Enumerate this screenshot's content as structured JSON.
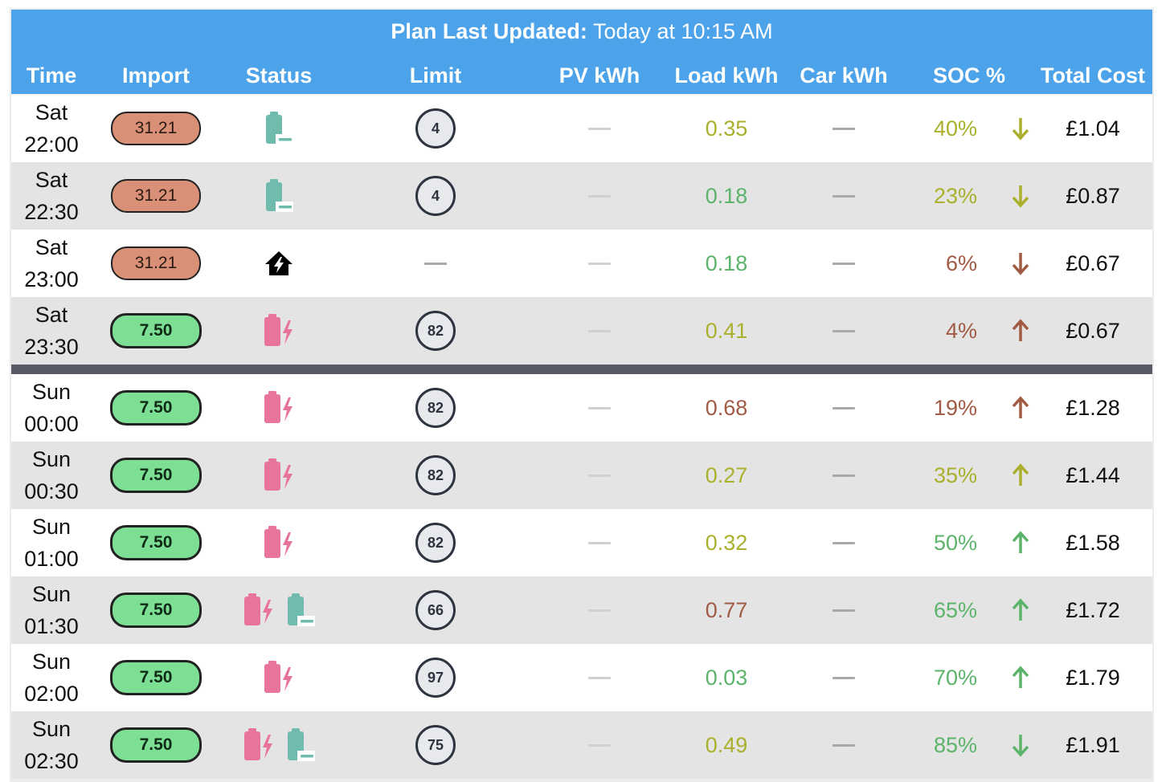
{
  "header": {
    "title_label": "Plan Last Updated:",
    "title_value": "Today at 10:15 AM"
  },
  "columns": [
    "Time",
    "Import",
    "Status",
    "Limit",
    "PV kWh",
    "Load kWh",
    "Car kWh",
    "SOC %",
    "Total Cost"
  ],
  "colors": {
    "header_bg": "#4da3ea",
    "divider": "#575b66",
    "pill_high": "#d99076",
    "pill_low": "#7ddf93",
    "discharge_icon": "#6fbcaf",
    "charge_icon": "#e8739c",
    "load_olive": "#aab02c",
    "load_green": "#5cb36a",
    "load_brown": "#a15a43"
  },
  "rows": [
    {
      "day": "Sat",
      "time": "22:00",
      "import": "31.21",
      "import_level": "high",
      "status": [
        "discharge-icon"
      ],
      "limit": "4",
      "pv": "—",
      "load": "0.35",
      "load_color": "#aab02c",
      "car": "—",
      "soc": "40%",
      "soc_color": "#aab02c",
      "soc_dir": "down",
      "cost": "£1.04"
    },
    {
      "day": "Sat",
      "time": "22:30",
      "import": "31.21",
      "import_level": "high",
      "status": [
        "discharge-icon"
      ],
      "limit": "4",
      "pv": "—",
      "load": "0.18",
      "load_color": "#5cb36a",
      "car": "—",
      "soc": "23%",
      "soc_color": "#aab02c",
      "soc_dir": "down",
      "cost": "£0.87"
    },
    {
      "day": "Sat",
      "time": "23:00",
      "import": "31.21",
      "import_level": "high",
      "status": [
        "house-bolt-icon"
      ],
      "limit": "—",
      "pv": "—",
      "load": "0.18",
      "load_color": "#5cb36a",
      "car": "—",
      "soc": "6%",
      "soc_color": "#a15a43",
      "soc_dir": "down",
      "cost": "£0.67"
    },
    {
      "day": "Sat",
      "time": "23:30",
      "import": "7.50",
      "import_level": "low",
      "status": [
        "charge-icon"
      ],
      "limit": "82",
      "pv": "—",
      "load": "0.41",
      "load_color": "#aab02c",
      "car": "—",
      "soc": "4%",
      "soc_color": "#a15a43",
      "soc_dir": "up",
      "cost": "£0.67"
    },
    {
      "day": "Sun",
      "time": "00:00",
      "import": "7.50",
      "import_level": "low",
      "status": [
        "charge-icon"
      ],
      "limit": "82",
      "pv": "—",
      "load": "0.68",
      "load_color": "#a15a43",
      "car": "—",
      "soc": "19%",
      "soc_color": "#a15a43",
      "soc_dir": "up",
      "cost": "£1.28"
    },
    {
      "day": "Sun",
      "time": "00:30",
      "import": "7.50",
      "import_level": "low",
      "status": [
        "charge-icon"
      ],
      "limit": "82",
      "pv": "—",
      "load": "0.27",
      "load_color": "#aab02c",
      "car": "—",
      "soc": "35%",
      "soc_color": "#aab02c",
      "soc_dir": "up",
      "cost": "£1.44"
    },
    {
      "day": "Sun",
      "time": "01:00",
      "import": "7.50",
      "import_level": "low",
      "status": [
        "charge-icon"
      ],
      "limit": "82",
      "pv": "—",
      "load": "0.32",
      "load_color": "#aab02c",
      "car": "—",
      "soc": "50%",
      "soc_color": "#5cb36a",
      "soc_dir": "up",
      "cost": "£1.58"
    },
    {
      "day": "Sun",
      "time": "01:30",
      "import": "7.50",
      "import_level": "low",
      "status": [
        "charge-icon",
        "discharge-icon"
      ],
      "limit": "66",
      "pv": "—",
      "load": "0.77",
      "load_color": "#a15a43",
      "car": "—",
      "soc": "65%",
      "soc_color": "#5cb36a",
      "soc_dir": "up",
      "cost": "£1.72"
    },
    {
      "day": "Sun",
      "time": "02:00",
      "import": "7.50",
      "import_level": "low",
      "status": [
        "charge-icon"
      ],
      "limit": "97",
      "pv": "—",
      "load": "0.03",
      "load_color": "#5cb36a",
      "car": "—",
      "soc": "70%",
      "soc_color": "#5cb36a",
      "soc_dir": "up",
      "cost": "£1.79"
    },
    {
      "day": "Sun",
      "time": "02:30",
      "import": "7.50",
      "import_level": "low",
      "status": [
        "charge-icon",
        "discharge-icon"
      ],
      "limit": "75",
      "pv": "—",
      "load": "0.49",
      "load_color": "#aab02c",
      "car": "—",
      "soc": "85%",
      "soc_color": "#5cb36a",
      "soc_dir": "down",
      "cost": "£1.91"
    }
  ]
}
